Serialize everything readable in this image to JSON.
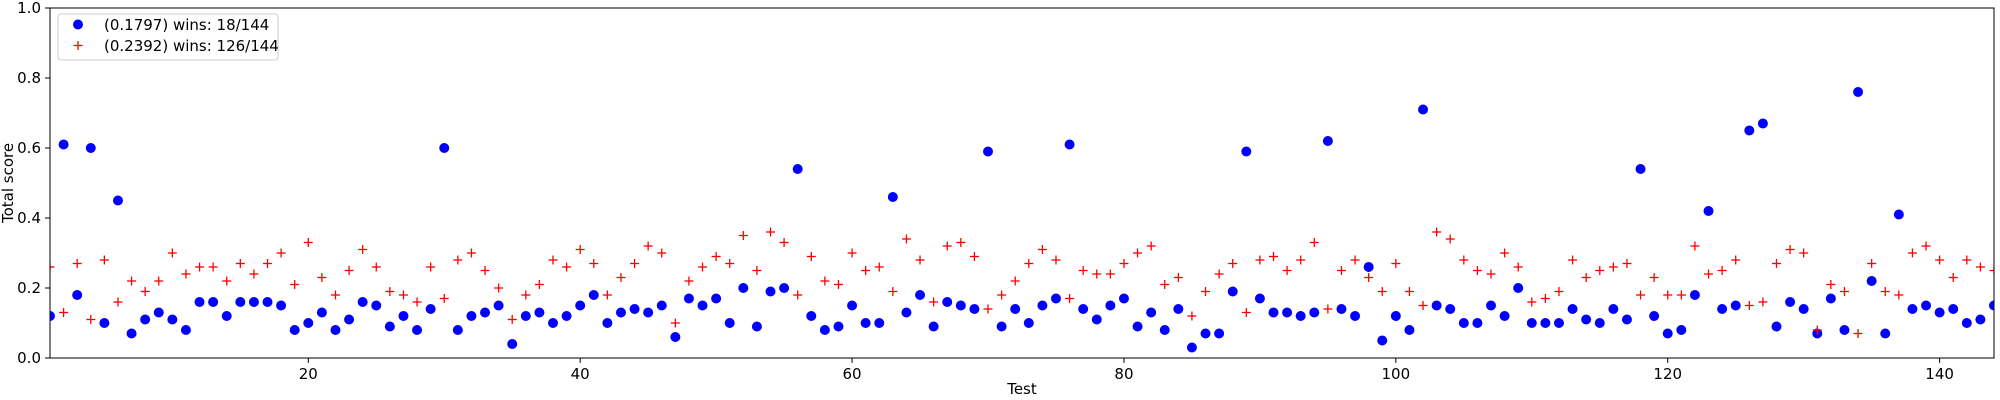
{
  "chart_data": {
    "type": "scatter",
    "title": "",
    "xlabel": "Test",
    "ylabel": "Total score",
    "xlim": [
      1,
      144
    ],
    "ylim": [
      0.0,
      1.0
    ],
    "xticks": [
      20,
      40,
      60,
      80,
      100,
      120,
      140
    ],
    "yticks": [
      0.0,
      0.2,
      0.4,
      0.6,
      0.8,
      1.0
    ],
    "grid": false,
    "legend_position": "top-left",
    "series": [
      {
        "name": "(0.1797) wins: 18/144",
        "marker": "circle",
        "color": "#0000ff",
        "x": [
          1,
          2,
          3,
          4,
          5,
          6,
          7,
          8,
          9,
          10,
          11,
          12,
          13,
          14,
          15,
          16,
          17,
          18,
          19,
          20,
          21,
          22,
          23,
          24,
          25,
          26,
          27,
          28,
          29,
          30,
          31,
          32,
          33,
          34,
          35,
          36,
          37,
          38,
          39,
          40,
          41,
          42,
          43,
          44,
          45,
          46,
          47,
          48,
          49,
          50,
          51,
          52,
          53,
          54,
          55,
          56,
          57,
          58,
          59,
          60,
          61,
          62,
          63,
          64,
          65,
          66,
          67,
          68,
          69,
          70,
          71,
          72,
          73,
          74,
          75,
          76,
          77,
          78,
          79,
          80,
          81,
          82,
          83,
          84,
          85,
          86,
          87,
          88,
          89,
          90,
          91,
          92,
          93,
          94,
          95,
          96,
          97,
          98,
          99,
          100,
          101,
          102,
          103,
          104,
          105,
          106,
          107,
          108,
          109,
          110,
          111,
          112,
          113,
          114,
          115,
          116,
          117,
          118,
          119,
          120,
          121,
          122,
          123,
          124,
          125,
          126,
          127,
          128,
          129,
          130,
          131,
          132,
          133,
          134,
          135,
          136,
          137,
          138,
          139,
          140,
          141,
          142,
          143,
          144
        ],
        "y": [
          0.12,
          0.61,
          0.18,
          0.6,
          0.1,
          0.45,
          0.07,
          0.11,
          0.13,
          0.11,
          0.08,
          0.16,
          0.16,
          0.12,
          0.16,
          0.16,
          0.16,
          0.15,
          0.08,
          0.1,
          0.13,
          0.08,
          0.11,
          0.16,
          0.15,
          0.09,
          0.12,
          0.08,
          0.14,
          0.6,
          0.08,
          0.12,
          0.13,
          0.15,
          0.04,
          0.12,
          0.13,
          0.1,
          0.12,
          0.15,
          0.18,
          0.1,
          0.13,
          0.14,
          0.13,
          0.15,
          0.06,
          0.17,
          0.15,
          0.17,
          0.1,
          0.2,
          0.09,
          0.19,
          0.2,
          0.54,
          0.12,
          0.08,
          0.09,
          0.15,
          0.1,
          0.1,
          0.46,
          0.13,
          0.18,
          0.09,
          0.16,
          0.15,
          0.14,
          0.59,
          0.09,
          0.14,
          0.1,
          0.15,
          0.17,
          0.61,
          0.14,
          0.11,
          0.15,
          0.17,
          0.09,
          0.13,
          0.08,
          0.14,
          0.03,
          0.07,
          0.07,
          0.19,
          0.59,
          0.17,
          0.13,
          0.13,
          0.12,
          0.13,
          0.62,
          0.14,
          0.12,
          0.26,
          0.05,
          0.12,
          0.08,
          0.71,
          0.15,
          0.14,
          0.1,
          0.1,
          0.15,
          0.12,
          0.2,
          0.1,
          0.1,
          0.1,
          0.14,
          0.11,
          0.1,
          0.14,
          0.11,
          0.54,
          0.12,
          0.07,
          0.08,
          0.18,
          0.42,
          0.14,
          0.15,
          0.65,
          0.67,
          0.09,
          0.16,
          0.14,
          0.07,
          0.17,
          0.08,
          0.76,
          0.22,
          0.07,
          0.41,
          0.14,
          0.15,
          0.13,
          0.14,
          0.1,
          0.11,
          0.15
        ]
      },
      {
        "name": "(0.2392) wins: 126/144",
        "marker": "plus",
        "color": "#ff0000",
        "x": [
          1,
          2,
          3,
          4,
          5,
          6,
          7,
          8,
          9,
          10,
          11,
          12,
          13,
          14,
          15,
          16,
          17,
          18,
          19,
          20,
          21,
          22,
          23,
          24,
          25,
          26,
          27,
          28,
          29,
          30,
          31,
          32,
          33,
          34,
          35,
          36,
          37,
          38,
          39,
          40,
          41,
          42,
          43,
          44,
          45,
          46,
          47,
          48,
          49,
          50,
          51,
          52,
          53,
          54,
          55,
          56,
          57,
          58,
          59,
          60,
          61,
          62,
          63,
          64,
          65,
          66,
          67,
          68,
          69,
          70,
          71,
          72,
          73,
          74,
          75,
          76,
          77,
          78,
          79,
          80,
          81,
          82,
          83,
          84,
          85,
          86,
          87,
          88,
          89,
          90,
          91,
          92,
          93,
          94,
          95,
          96,
          97,
          98,
          99,
          100,
          101,
          102,
          103,
          104,
          105,
          106,
          107,
          108,
          109,
          110,
          111,
          112,
          113,
          114,
          115,
          116,
          117,
          118,
          119,
          120,
          121,
          122,
          123,
          124,
          125,
          126,
          127,
          128,
          129,
          130,
          131,
          132,
          133,
          134,
          135,
          136,
          137,
          138,
          139,
          140,
          141,
          142,
          143,
          144
        ],
        "y": [
          0.26,
          0.13,
          0.27,
          0.11,
          0.28,
          0.16,
          0.22,
          0.19,
          0.22,
          0.3,
          0.24,
          0.26,
          0.26,
          0.22,
          0.27,
          0.24,
          0.27,
          0.3,
          0.21,
          0.33,
          0.23,
          0.18,
          0.25,
          0.31,
          0.26,
          0.19,
          0.18,
          0.16,
          0.26,
          0.17,
          0.28,
          0.3,
          0.25,
          0.2,
          0.11,
          0.18,
          0.21,
          0.28,
          0.26,
          0.31,
          0.27,
          0.18,
          0.23,
          0.27,
          0.32,
          0.3,
          0.1,
          0.22,
          0.26,
          0.29,
          0.27,
          0.35,
          0.25,
          0.36,
          0.33,
          0.18,
          0.29,
          0.22,
          0.21,
          0.3,
          0.25,
          0.26,
          0.19,
          0.34,
          0.28,
          0.16,
          0.32,
          0.33,
          0.29,
          0.14,
          0.18,
          0.22,
          0.27,
          0.31,
          0.28,
          0.17,
          0.25,
          0.24,
          0.24,
          0.27,
          0.3,
          0.32,
          0.21,
          0.23,
          0.12,
          0.19,
          0.24,
          0.27,
          0.13,
          0.28,
          0.29,
          0.25,
          0.28,
          0.33,
          0.14,
          0.25,
          0.28,
          0.23,
          0.19,
          0.27,
          0.19,
          0.15,
          0.36,
          0.34,
          0.28,
          0.25,
          0.24,
          0.3,
          0.26,
          0.16,
          0.17,
          0.19,
          0.28,
          0.23,
          0.25,
          0.26,
          0.27,
          0.18,
          0.23,
          0.18,
          0.18,
          0.32,
          0.24,
          0.25,
          0.28,
          0.15,
          0.16,
          0.27,
          0.31,
          0.3,
          0.08,
          0.21,
          0.19,
          0.07,
          0.27,
          0.19,
          0.18,
          0.3,
          0.32,
          0.28,
          0.23,
          0.28,
          0.26,
          0.25
        ]
      }
    ]
  }
}
